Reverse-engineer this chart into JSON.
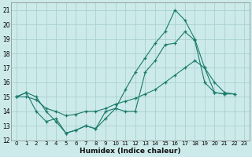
{
  "xlabel": "Humidex (Indice chaleur)",
  "bg_color": "#cceaea",
  "grid_color": "#aad0d0",
  "line_color": "#1a7a6a",
  "xlim": [
    -0.5,
    23.5
  ],
  "ylim": [
    12,
    21.5
  ],
  "yticks": [
    12,
    13,
    14,
    15,
    16,
    17,
    18,
    19,
    20,
    21
  ],
  "xticks": [
    0,
    1,
    2,
    3,
    4,
    5,
    6,
    7,
    8,
    9,
    10,
    11,
    12,
    13,
    14,
    15,
    16,
    17,
    18,
    19,
    20,
    21,
    22,
    23
  ],
  "series": [
    {
      "x": [
        0,
        1,
        2,
        3,
        4,
        5,
        6,
        7,
        8,
        9,
        10,
        11,
        12,
        13,
        14,
        15,
        16,
        17,
        18,
        19,
        20,
        21,
        22
      ],
      "y": [
        15.0,
        15.3,
        14.0,
        13.3,
        13.5,
        12.5,
        12.7,
        13.0,
        12.8,
        14.0,
        14.2,
        15.5,
        16.7,
        17.7,
        18.7,
        19.5,
        21.0,
        20.3,
        19.0,
        17.0,
        16.0,
        15.3,
        15.2
      ]
    },
    {
      "x": [
        0,
        1,
        2,
        3,
        4,
        5,
        6,
        7,
        8,
        9,
        10,
        11,
        12,
        13,
        14,
        15,
        16,
        17,
        18,
        19,
        20,
        21,
        22
      ],
      "y": [
        15.0,
        15.0,
        14.8,
        14.2,
        14.0,
        13.7,
        13.8,
        14.0,
        14.0,
        14.2,
        14.5,
        14.7,
        14.9,
        15.2,
        15.5,
        16.0,
        16.5,
        17.0,
        17.5,
        17.0,
        15.3,
        15.2,
        15.2
      ]
    },
    {
      "x": [
        0,
        1,
        2,
        3,
        4,
        5,
        6,
        7,
        8,
        9,
        10,
        11,
        12,
        13,
        14,
        15,
        16,
        17,
        18,
        19,
        20,
        21
      ],
      "y": [
        15.0,
        15.3,
        15.0,
        14.0,
        13.3,
        12.5,
        12.7,
        13.0,
        12.8,
        13.5,
        14.2,
        14.0,
        14.0,
        16.7,
        17.5,
        18.6,
        18.7,
        19.5,
        18.9,
        16.0,
        15.3,
        15.2
      ]
    }
  ]
}
